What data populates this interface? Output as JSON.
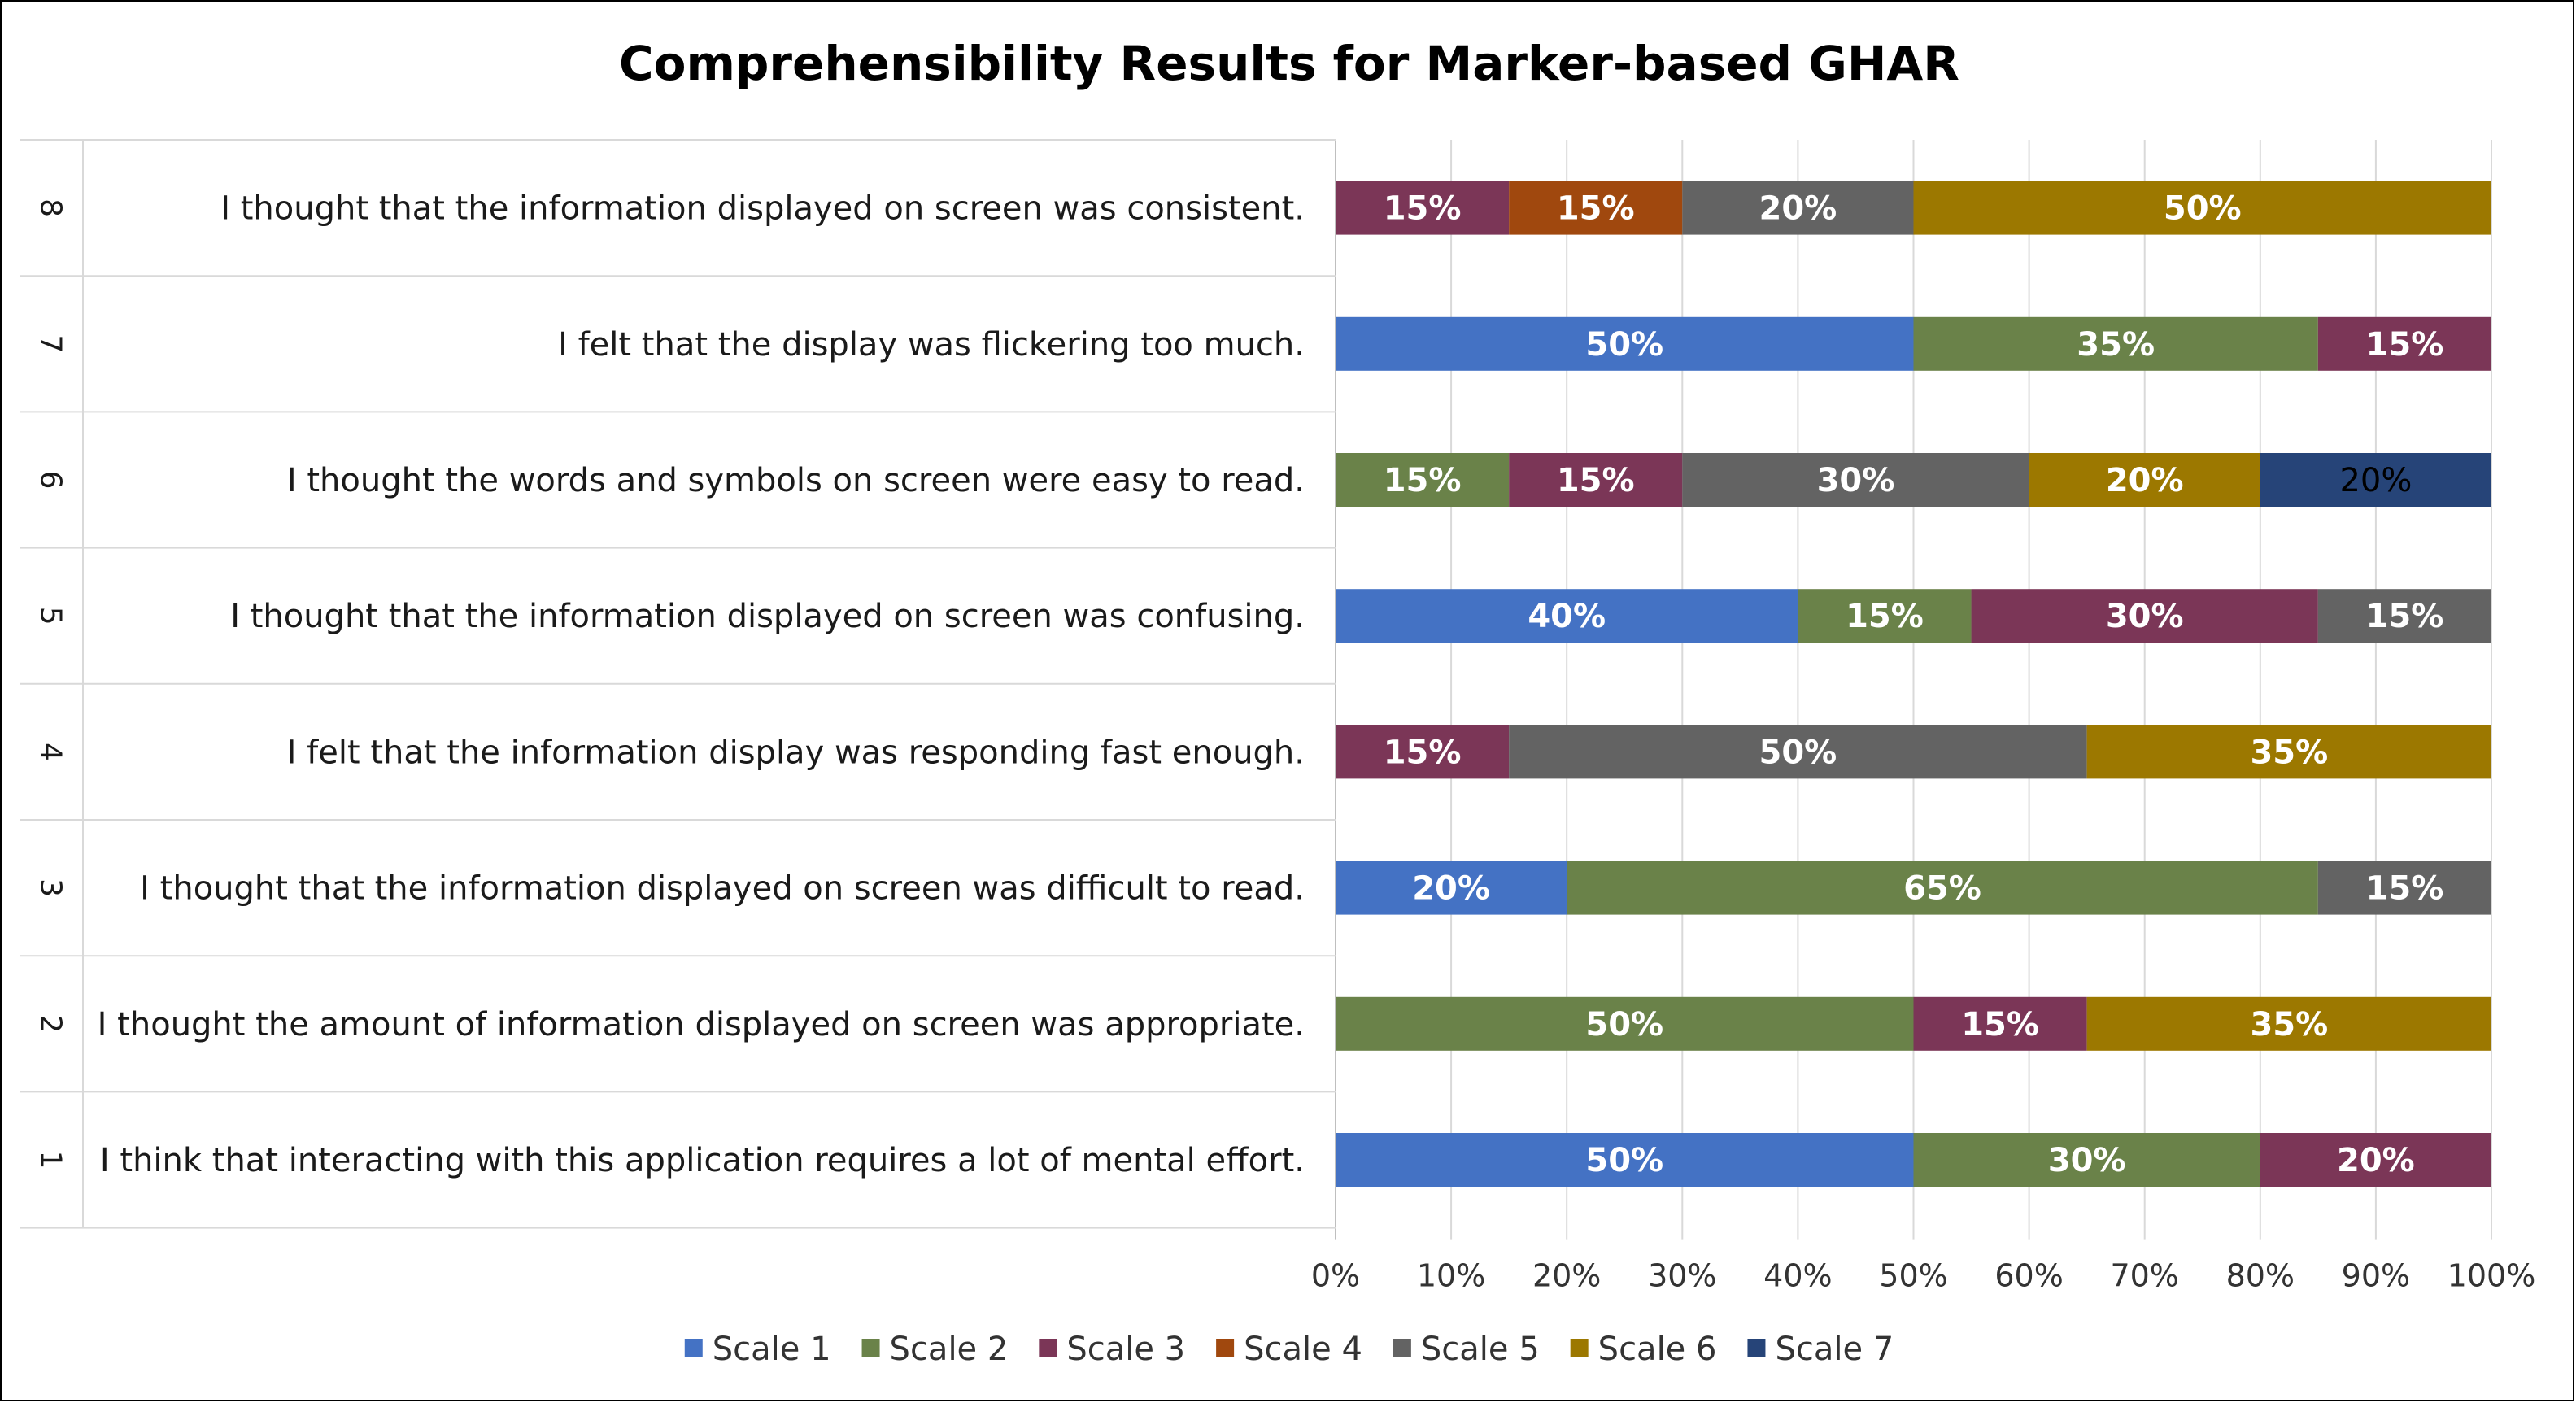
{
  "chart_data": {
    "type": "bar",
    "orientation": "horizontal",
    "stacked": "100%",
    "title": "Comprehensibility Results for Marker-based GHAR",
    "xlabel": "",
    "ylabel": "",
    "xlim": [
      0,
      100
    ],
    "x_ticks": [
      "0%",
      "10%",
      "20%",
      "30%",
      "40%",
      "50%",
      "60%",
      "70%",
      "80%",
      "90%",
      "100%"
    ],
    "grid": "vertical",
    "legend_position": "bottom",
    "categories": [
      {
        "number": "1",
        "label": "I think that interacting with this application requires a lot of mental effort."
      },
      {
        "number": "2",
        "label": "I thought the amount of information displayed on screen was appropriate."
      },
      {
        "number": "3",
        "label": "I thought that the information displayed on screen was difficult to read."
      },
      {
        "number": "4",
        "label": "I felt that the information display was responding fast enough."
      },
      {
        "number": "5",
        "label": "I thought that the information displayed on screen was confusing."
      },
      {
        "number": "6",
        "label": "I thought the words and symbols on screen were easy to read."
      },
      {
        "number": "7",
        "label": "I felt that the display was flickering too much."
      },
      {
        "number": "8",
        "label": "I thought that the information displayed on screen was consistent."
      }
    ],
    "series": [
      {
        "name": "Scale 1",
        "color": "#4472C4",
        "values": [
          50,
          0,
          20,
          0,
          40,
          0,
          50,
          0
        ],
        "labels": [
          "50%",
          "",
          "20%",
          "",
          "40%",
          "",
          "50%",
          ""
        ]
      },
      {
        "name": "Scale 2",
        "color": "#6A8249",
        "values": [
          30,
          50,
          65,
          0,
          15,
          15,
          35,
          0
        ],
        "labels": [
          "30%",
          "50%",
          "65%",
          "",
          "15%",
          "15%",
          "35%",
          ""
        ]
      },
      {
        "name": "Scale 3",
        "color": "#7B3657",
        "values": [
          20,
          15,
          0,
          15,
          30,
          15,
          15,
          15
        ],
        "labels": [
          "20%",
          "15%",
          "",
          "15%",
          "30%",
          "15%",
          "15%",
          "15%"
        ]
      },
      {
        "name": "Scale 4",
        "color": "#A0480E",
        "values": [
          0,
          0,
          0,
          0,
          0,
          0,
          0,
          15
        ],
        "labels": [
          "",
          "",
          "",
          "",
          "",
          "",
          "",
          "15%"
        ]
      },
      {
        "name": "Scale 5",
        "color": "#636363",
        "values": [
          0,
          0,
          15,
          50,
          15,
          30,
          0,
          20
        ],
        "labels": [
          "",
          "",
          "15%",
          "50%",
          "15%",
          "30%",
          "",
          "20%"
        ]
      },
      {
        "name": "Scale 6",
        "color": "#9C7800",
        "values": [
          0,
          35,
          0,
          35,
          0,
          20,
          0,
          50
        ],
        "labels": [
          "",
          "35%",
          "",
          "35%",
          "",
          "20%",
          "",
          "50%"
        ]
      },
      {
        "name": "Scale 7",
        "color": "#264478",
        "values": [
          0,
          0,
          0,
          0,
          0,
          20,
          0,
          0
        ],
        "labels": [
          "",
          "",
          "",
          "",
          "",
          "20%",
          "",
          ""
        ],
        "label_style": "plain"
      }
    ]
  }
}
